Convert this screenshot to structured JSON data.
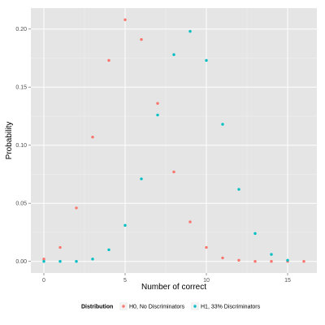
{
  "chart_data": {
    "type": "scatter",
    "xlabel": "Number of correct",
    "ylabel": "Probability",
    "xlim": [
      -0.8,
      16.8
    ],
    "ylim": [
      -0.01,
      0.218
    ],
    "x_ticks": [
      0,
      5,
      10,
      15
    ],
    "y_ticks": [
      0.0,
      0.05,
      0.1,
      0.15,
      0.2
    ],
    "x_tick_labels": [
      "0",
      "5",
      "10",
      "15"
    ],
    "y_tick_labels": [
      "0.00",
      "0.05",
      "0.10",
      "0.15",
      "0.20"
    ],
    "grid": true,
    "legend_position": "bottom",
    "legend_title": "Distribution",
    "series": [
      {
        "name": "H0, No Discriminators",
        "color": "#F8766D",
        "x": [
          0,
          1,
          2,
          3,
          4,
          5,
          6,
          7,
          8,
          9,
          10,
          11,
          12,
          13,
          14,
          15,
          16
        ],
        "y": [
          0.002,
          0.012,
          0.046,
          0.107,
          0.173,
          0.208,
          0.191,
          0.136,
          0.077,
          0.034,
          0.012,
          0.003,
          0.001,
          0.0,
          0.0,
          0.0,
          0.0
        ]
      },
      {
        "name": "H1, 33% Discriminators",
        "color": "#00BFC4",
        "x": [
          0,
          1,
          2,
          3,
          4,
          5,
          6,
          7,
          8,
          9,
          10,
          11,
          12,
          13,
          14,
          15
        ],
        "y": [
          0.0,
          0.0,
          0.0,
          0.002,
          0.01,
          0.031,
          0.071,
          0.126,
          0.178,
          0.198,
          0.173,
          0.118,
          0.062,
          0.024,
          0.006,
          0.001
        ]
      }
    ]
  }
}
